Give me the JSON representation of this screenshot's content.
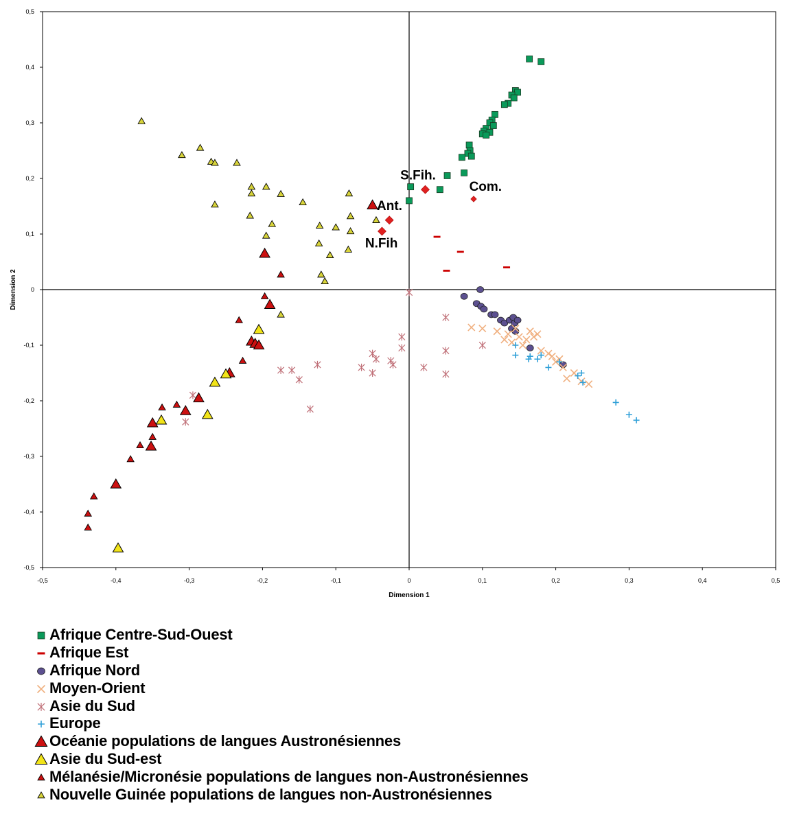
{
  "chart_data": {
    "type": "scatter",
    "title": "",
    "xlabel": "Dimension 1",
    "ylabel": "Dimension 2",
    "xlim": [
      -0.5,
      0.5
    ],
    "ylim": [
      -0.5,
      0.5
    ],
    "xticks": [
      -0.5,
      -0.4,
      -0.3,
      -0.2,
      -0.1,
      0,
      0.1,
      0.2,
      0.3,
      0.4,
      0.5
    ],
    "yticks": [
      -0.5,
      -0.4,
      -0.3,
      -0.2,
      -0.1,
      0,
      0.1,
      0.2,
      0.3,
      0.4,
      0.5
    ],
    "xtick_labels": [
      "-0,5",
      "-0,4",
      "-0,3",
      "-0,2",
      "-0,1",
      "0",
      "0,1",
      "0,2",
      "0,3",
      "0,4",
      "0,5"
    ],
    "ytick_labels": [
      "-0,5",
      "-0,4",
      "-0,3",
      "-0,2",
      "-0,1",
      "0",
      "0,1",
      "0,2",
      "0,3",
      "0,4",
      "0,5"
    ],
    "grid": false,
    "legend_position": "bottom",
    "series": [
      {
        "name": "Afrique Centre-Sud-Ouest",
        "marker": "square",
        "color": "#0a9a5a",
        "x": [
          0.164,
          0.18,
          0.145,
          0.148,
          0.14,
          0.143,
          0.135,
          0.13,
          0.117,
          0.113,
          0.11,
          0.115,
          0.105,
          0.102,
          0.11,
          0.1,
          0.105,
          0.082,
          0.083,
          0.08,
          0.085,
          0.072,
          0.075,
          0.052,
          0.042,
          0.002,
          0.0
        ],
        "y": [
          0.415,
          0.41,
          0.358,
          0.355,
          0.35,
          0.345,
          0.335,
          0.333,
          0.315,
          0.305,
          0.3,
          0.295,
          0.29,
          0.285,
          0.283,
          0.28,
          0.278,
          0.26,
          0.25,
          0.245,
          0.24,
          0.238,
          0.21,
          0.205,
          0.18,
          0.185,
          0.16
        ]
      },
      {
        "name": "Afrique Est",
        "marker": "dash",
        "color": "#cc0000",
        "x": [
          0.038,
          0.07,
          0.051,
          0.133
        ],
        "y": [
          0.095,
          0.068,
          0.034,
          0.04
        ]
      },
      {
        "name": "Afrique Nord",
        "marker": "circle",
        "color": "#5c5090",
        "x": [
          0.097,
          0.075,
          0.092,
          0.098,
          0.102,
          0.112,
          0.117,
          0.125,
          0.13,
          0.137,
          0.14,
          0.145,
          0.144,
          0.142,
          0.148,
          0.165,
          0.21
        ],
        "y": [
          0.0,
          -0.012,
          -0.025,
          -0.03,
          -0.035,
          -0.045,
          -0.045,
          -0.055,
          -0.06,
          -0.055,
          -0.07,
          -0.075,
          -0.06,
          -0.05,
          -0.055,
          -0.105,
          -0.135
        ]
      },
      {
        "name": "Moyen-Orient",
        "marker": "x",
        "color": "#f0b080",
        "x": [
          0.085,
          0.1,
          0.12,
          0.13,
          0.135,
          0.14,
          0.15,
          0.155,
          0.16,
          0.165,
          0.17,
          0.175,
          0.18,
          0.19,
          0.195,
          0.2,
          0.205,
          0.215,
          0.225,
          0.235,
          0.245,
          0.145,
          0.21
        ],
        "y": [
          -0.068,
          -0.07,
          -0.075,
          -0.09,
          -0.08,
          -0.095,
          -0.085,
          -0.1,
          -0.09,
          -0.075,
          -0.085,
          -0.08,
          -0.11,
          -0.115,
          -0.12,
          -0.13,
          -0.125,
          -0.16,
          -0.15,
          -0.165,
          -0.17,
          -0.07,
          -0.14
        ]
      },
      {
        "name": "Asie du Sud",
        "marker": "asterisk",
        "color": "#c07078",
        "x": [
          0.0,
          0.05,
          0.1,
          -0.01,
          -0.01,
          -0.05,
          -0.045,
          -0.025,
          -0.022,
          -0.065,
          -0.05,
          0.05,
          0.05,
          0.02,
          -0.125,
          -0.175,
          -0.16,
          -0.15,
          -0.135,
          -0.295,
          -0.305
        ],
        "y": [
          -0.005,
          -0.05,
          -0.1,
          -0.085,
          -0.105,
          -0.115,
          -0.125,
          -0.128,
          -0.135,
          -0.14,
          -0.15,
          -0.11,
          -0.152,
          -0.14,
          -0.135,
          -0.145,
          -0.145,
          -0.162,
          -0.215,
          -0.19,
          -0.238
        ]
      },
      {
        "name": "Europe",
        "marker": "plus",
        "color": "#30a0d8",
        "x": [
          0.145,
          0.165,
          0.175,
          0.18,
          0.19,
          0.205,
          0.23,
          0.235,
          0.237,
          0.145,
          0.163,
          0.282,
          0.3,
          0.31
        ],
        "y": [
          -0.1,
          -0.12,
          -0.125,
          -0.118,
          -0.14,
          -0.13,
          -0.155,
          -0.15,
          -0.167,
          -0.118,
          -0.125,
          -0.203,
          -0.225,
          -0.235
        ]
      },
      {
        "name": "Océanie populations de langues Austronésiennes",
        "marker": "triangle-large",
        "color": "#cc1010",
        "x": [
          -0.05,
          -0.197,
          -0.19,
          -0.215,
          -0.21,
          -0.205,
          -0.245,
          -0.287,
          -0.305,
          -0.35,
          -0.352,
          -0.4
        ],
        "y": [
          0.152,
          0.065,
          -0.027,
          -0.093,
          -0.097,
          -0.1,
          -0.15,
          -0.195,
          -0.218,
          -0.24,
          -0.282,
          -0.35
        ]
      },
      {
        "name": "Asie du Sud-est",
        "marker": "triangle-large",
        "color": "#f2e418",
        "x": [
          -0.205,
          -0.25,
          -0.265,
          -0.275,
          -0.338,
          -0.397
        ],
        "y": [
          -0.072,
          -0.152,
          -0.167,
          -0.225,
          -0.235,
          -0.465
        ]
      },
      {
        "name": "Mélanésie/Micronésie populations de langues non-Austronésiennes",
        "marker": "triangle-small",
        "color": "#cc1010",
        "x": [
          -0.175,
          -0.197,
          -0.232,
          -0.227,
          -0.317,
          -0.337,
          -0.35,
          -0.367,
          -0.38,
          -0.43,
          -0.438,
          -0.438
        ],
        "y": [
          0.027,
          -0.012,
          -0.055,
          -0.128,
          -0.207,
          -0.212,
          -0.265,
          -0.28,
          -0.305,
          -0.372,
          -0.403,
          -0.428
        ]
      },
      {
        "name": "Nouvelle Guinée populations de langues non-Austronésiennes",
        "marker": "triangle-small",
        "color": "#d8d43a",
        "x": [
          -0.365,
          -0.31,
          -0.285,
          -0.27,
          -0.265,
          -0.235,
          -0.215,
          -0.215,
          -0.195,
          -0.175,
          -0.145,
          -0.082,
          -0.08,
          -0.265,
          -0.217,
          -0.187,
          -0.195,
          -0.122,
          -0.1,
          -0.08,
          -0.045,
          -0.123,
          -0.108,
          -0.083,
          -0.12,
          -0.115,
          -0.175
        ],
        "y": [
          0.303,
          0.242,
          0.255,
          0.23,
          0.228,
          0.228,
          0.185,
          0.173,
          0.185,
          0.172,
          0.157,
          0.173,
          0.132,
          0.153,
          0.133,
          0.118,
          0.097,
          0.115,
          0.112,
          0.105,
          0.125,
          0.083,
          0.062,
          0.072,
          0.027,
          0.015,
          -0.045
        ]
      },
      {
        "name": "",
        "marker": "diamond",
        "color": "#e02020",
        "x": [
          0.022,
          0.088,
          -0.027,
          -0.037
        ],
        "y": [
          0.18,
          0.163,
          0.125,
          0.105
        ]
      }
    ],
    "annotations": [
      {
        "text": "S.Fih.",
        "x": -0.012,
        "y": 0.198
      },
      {
        "text": "Com.",
        "x": 0.082,
        "y": 0.178
      },
      {
        "text": "Ant.",
        "x": -0.044,
        "y": 0.143
      },
      {
        "text": "N.Fih",
        "x": -0.06,
        "y": 0.076
      }
    ]
  }
}
